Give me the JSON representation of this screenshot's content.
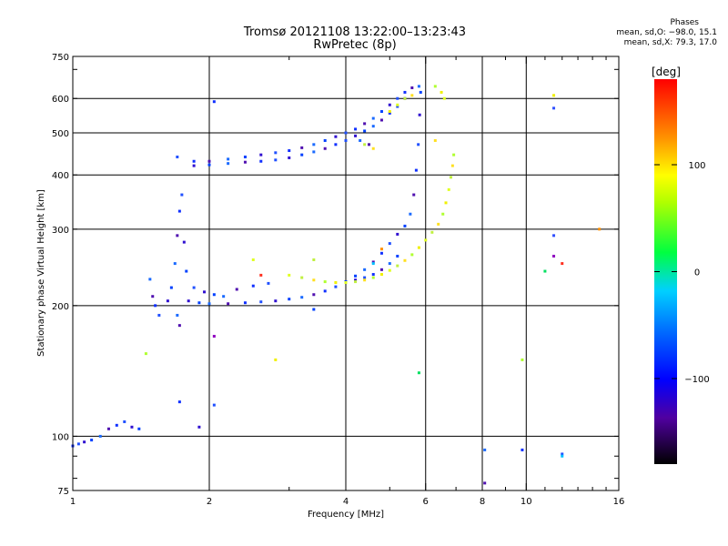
{
  "chart_data": {
    "type": "scatter",
    "title": "Tromsø 20121108 13:22:00–13:23:43",
    "subtitle": "RwPretec (8p)",
    "xlabel": "Frequency [MHz]",
    "ylabel": "Stationary phase Virtual Height [km]",
    "x_scale": "log",
    "y_scale": "log",
    "xlim": [
      1,
      16
    ],
    "ylim": [
      75,
      750
    ],
    "x_ticks": [
      1,
      2,
      4,
      6,
      8,
      10,
      16
    ],
    "y_ticks": [
      75,
      100,
      200,
      300,
      400,
      500,
      600,
      750
    ],
    "grid_x": [
      2,
      4,
      6,
      8,
      10
    ],
    "grid_y": [
      100,
      200,
      300,
      400,
      500,
      600
    ],
    "legend": {
      "heading": "Phases",
      "lines": [
        "mean, sd,O: −98.0, 15.1",
        "mean, sd,X: 79.3, 17.0"
      ]
    },
    "colorbar": {
      "label": "[deg]",
      "ticks": [
        100,
        0,
        -100
      ],
      "tick_labels": [
        "100",
        "0",
        "−100"
      ],
      "range": [
        -180,
        180
      ]
    },
    "series": [
      {
        "name": "O",
        "phase_mean": -98.0,
        "phase_sd": 15.1,
        "points": [
          [
            1.0,
            95
          ],
          [
            1.03,
            96
          ],
          [
            1.06,
            97
          ],
          [
            1.1,
            98
          ],
          [
            1.15,
            100
          ],
          [
            1.2,
            104
          ],
          [
            1.25,
            106
          ],
          [
            1.3,
            108
          ],
          [
            1.35,
            105
          ],
          [
            1.4,
            104
          ],
          [
            1.48,
            230
          ],
          [
            1.5,
            210
          ],
          [
            1.52,
            200
          ],
          [
            1.55,
            190
          ],
          [
            1.62,
            205
          ],
          [
            1.65,
            220
          ],
          [
            1.68,
            250
          ],
          [
            1.7,
            290
          ],
          [
            1.72,
            330
          ],
          [
            1.74,
            360
          ],
          [
            1.76,
            280
          ],
          [
            1.78,
            240
          ],
          [
            1.7,
            190
          ],
          [
            1.72,
            180
          ],
          [
            1.72,
            120
          ],
          [
            1.85,
            220
          ],
          [
            1.95,
            215
          ],
          [
            2.05,
            212
          ],
          [
            2.15,
            210
          ],
          [
            2.3,
            218
          ],
          [
            2.5,
            222
          ],
          [
            2.7,
            225
          ],
          [
            1.8,
            205
          ],
          [
            1.9,
            203
          ],
          [
            2.0,
            202
          ],
          [
            2.2,
            202
          ],
          [
            2.4,
            203
          ],
          [
            2.6,
            204
          ],
          [
            2.8,
            205
          ],
          [
            3.0,
            207
          ],
          [
            3.2,
            209
          ],
          [
            3.4,
            212
          ],
          [
            3.6,
            216
          ],
          [
            3.8,
            221
          ],
          [
            4.0,
            227
          ],
          [
            4.2,
            234
          ],
          [
            4.4,
            242
          ],
          [
            4.6,
            252
          ],
          [
            4.8,
            264
          ],
          [
            5.0,
            278
          ],
          [
            5.2,
            292
          ],
          [
            5.4,
            305
          ],
          [
            5.55,
            325
          ],
          [
            5.65,
            360
          ],
          [
            5.72,
            410
          ],
          [
            5.78,
            470
          ],
          [
            5.82,
            550
          ],
          [
            5.85,
            620
          ],
          [
            5.8,
            640
          ],
          [
            5.6,
            635
          ],
          [
            5.4,
            620
          ],
          [
            5.2,
            600
          ],
          [
            5.0,
            580
          ],
          [
            4.8,
            560
          ],
          [
            4.6,
            540
          ],
          [
            4.4,
            525
          ],
          [
            4.2,
            510
          ],
          [
            4.0,
            500
          ],
          [
            3.8,
            490
          ],
          [
            3.6,
            480
          ],
          [
            3.4,
            470
          ],
          [
            3.2,
            462
          ],
          [
            3.0,
            455
          ],
          [
            2.8,
            450
          ],
          [
            2.6,
            445
          ],
          [
            2.4,
            440
          ],
          [
            2.2,
            435
          ],
          [
            2.0,
            430
          ],
          [
            1.85,
            430
          ],
          [
            1.7,
            440
          ],
          [
            1.85,
            420
          ],
          [
            2.0,
            422
          ],
          [
            2.2,
            425
          ],
          [
            2.4,
            428
          ],
          [
            2.6,
            430
          ],
          [
            2.8,
            433
          ],
          [
            3.0,
            438
          ],
          [
            3.2,
            445
          ],
          [
            3.4,
            452
          ],
          [
            3.6,
            460
          ],
          [
            3.8,
            470
          ],
          [
            4.0,
            480
          ],
          [
            4.2,
            492
          ],
          [
            4.4,
            505
          ],
          [
            4.6,
            518
          ],
          [
            4.8,
            535
          ],
          [
            5.0,
            555
          ],
          [
            5.2,
            575
          ],
          [
            5.4,
            600
          ],
          [
            5.2,
            260
          ],
          [
            5.0,
            250
          ],
          [
            4.8,
            242
          ],
          [
            4.6,
            236
          ],
          [
            4.4,
            232
          ],
          [
            4.2,
            229
          ],
          [
            4.0,
            227
          ],
          [
            4.3,
            480
          ],
          [
            4.5,
            470
          ],
          [
            2.05,
            590
          ],
          [
            2.05,
            118
          ],
          [
            1.9,
            105
          ],
          [
            3.4,
            196
          ],
          [
            8.1,
            93
          ],
          [
            8.1,
            78
          ],
          [
            9.8,
            93
          ],
          [
            12.0,
            91
          ]
        ]
      },
      {
        "name": "X",
        "phase_mean": 79.3,
        "phase_sd": 17.0,
        "points": [
          [
            3.0,
            235
          ],
          [
            3.2,
            232
          ],
          [
            3.4,
            229
          ],
          [
            3.6,
            227
          ],
          [
            3.8,
            226
          ],
          [
            4.0,
            226
          ],
          [
            4.2,
            227
          ],
          [
            4.4,
            229
          ],
          [
            4.6,
            232
          ],
          [
            4.8,
            236
          ],
          [
            5.0,
            241
          ],
          [
            5.2,
            247
          ],
          [
            5.4,
            254
          ],
          [
            5.6,
            262
          ],
          [
            5.8,
            272
          ],
          [
            6.0,
            283
          ],
          [
            6.2,
            295
          ],
          [
            6.4,
            308
          ],
          [
            6.55,
            325
          ],
          [
            6.65,
            345
          ],
          [
            6.75,
            370
          ],
          [
            6.82,
            395
          ],
          [
            6.88,
            420
          ],
          [
            6.92,
            445
          ],
          [
            5.0,
            560
          ],
          [
            5.2,
            580
          ],
          [
            5.4,
            600
          ],
          [
            5.6,
            610
          ],
          [
            6.3,
            640
          ],
          [
            6.5,
            620
          ],
          [
            6.6,
            600
          ],
          [
            4.4,
            470
          ],
          [
            4.6,
            460
          ],
          [
            1.45,
            155
          ],
          [
            2.8,
            150
          ],
          [
            2.5,
            255
          ],
          [
            3.4,
            255
          ],
          [
            6.3,
            480
          ],
          [
            9.8,
            150
          ],
          [
            11.5,
            610
          ]
        ]
      },
      {
        "name": "scatter",
        "points": [
          [
            2.6,
            235
          ],
          [
            4.6,
            250
          ],
          [
            4.8,
            270
          ],
          [
            5.8,
            140
          ],
          [
            11.5,
            290
          ],
          [
            11.5,
            260
          ],
          [
            12.0,
            250
          ],
          [
            12.0,
            90
          ],
          [
            14.5,
            300
          ],
          [
            11.0,
            240
          ],
          [
            11.5,
            570
          ],
          [
            2.05,
            170
          ]
        ]
      }
    ]
  }
}
